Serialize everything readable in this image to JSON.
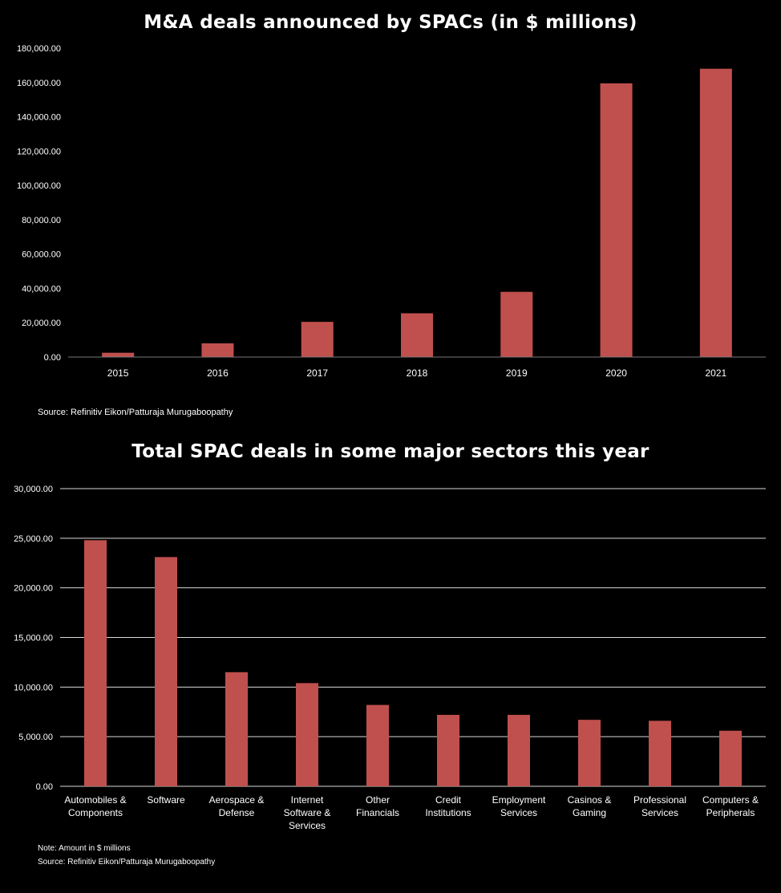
{
  "chart_data": [
    {
      "type": "bar",
      "title": "M&A deals announced by SPACs (in $ millions)",
      "categories": [
        "2015",
        "2016",
        "2017",
        "2018",
        "2019",
        "2020",
        "2021"
      ],
      "values": [
        2500,
        8000,
        20500,
        25500,
        38000,
        159500,
        168000
      ],
      "ylim": [
        0,
        180000
      ],
      "yticks": [
        "0.00",
        "20,000.00",
        "40,000.00",
        "60,000.00",
        "80,000.00",
        "100,000.00",
        "120,000.00",
        "140,000.00",
        "160,000.00",
        "180,000.00"
      ],
      "grid": false,
      "bar_color": "#c0504d",
      "source": "Source: Refinitiv Eikon/Patturaja Murugaboopathy"
    },
    {
      "type": "bar",
      "title": "Total SPAC deals in some major sectors  this year",
      "categories": [
        [
          "Automobiles &",
          "Components"
        ],
        [
          "Software"
        ],
        [
          "Aerospace &",
          "Defense"
        ],
        [
          "Internet",
          "Software &",
          "Services"
        ],
        [
          "Other",
          "Financials"
        ],
        [
          "Credit",
          "Institutions"
        ],
        [
          "Employment",
          "Services"
        ],
        [
          "Casinos &",
          "Gaming"
        ],
        [
          "Professional",
          "Services"
        ],
        [
          "Computers &",
          "Peripherals"
        ]
      ],
      "values": [
        24800,
        23100,
        11500,
        10400,
        8200,
        7200,
        7200,
        6700,
        6600,
        5600
      ],
      "ylim": [
        0,
        30000
      ],
      "yticks": [
        "0.00",
        "5,000.00",
        "10,000.00",
        "15,000.00",
        "20,000.00",
        "25,000.00",
        "30,000.00"
      ],
      "grid": true,
      "bar_color": "#c0504d",
      "note": "Note: Amount in $ millions",
      "source": "Source: Refinitiv Eikon/Patturaja Murugaboopathy"
    }
  ]
}
